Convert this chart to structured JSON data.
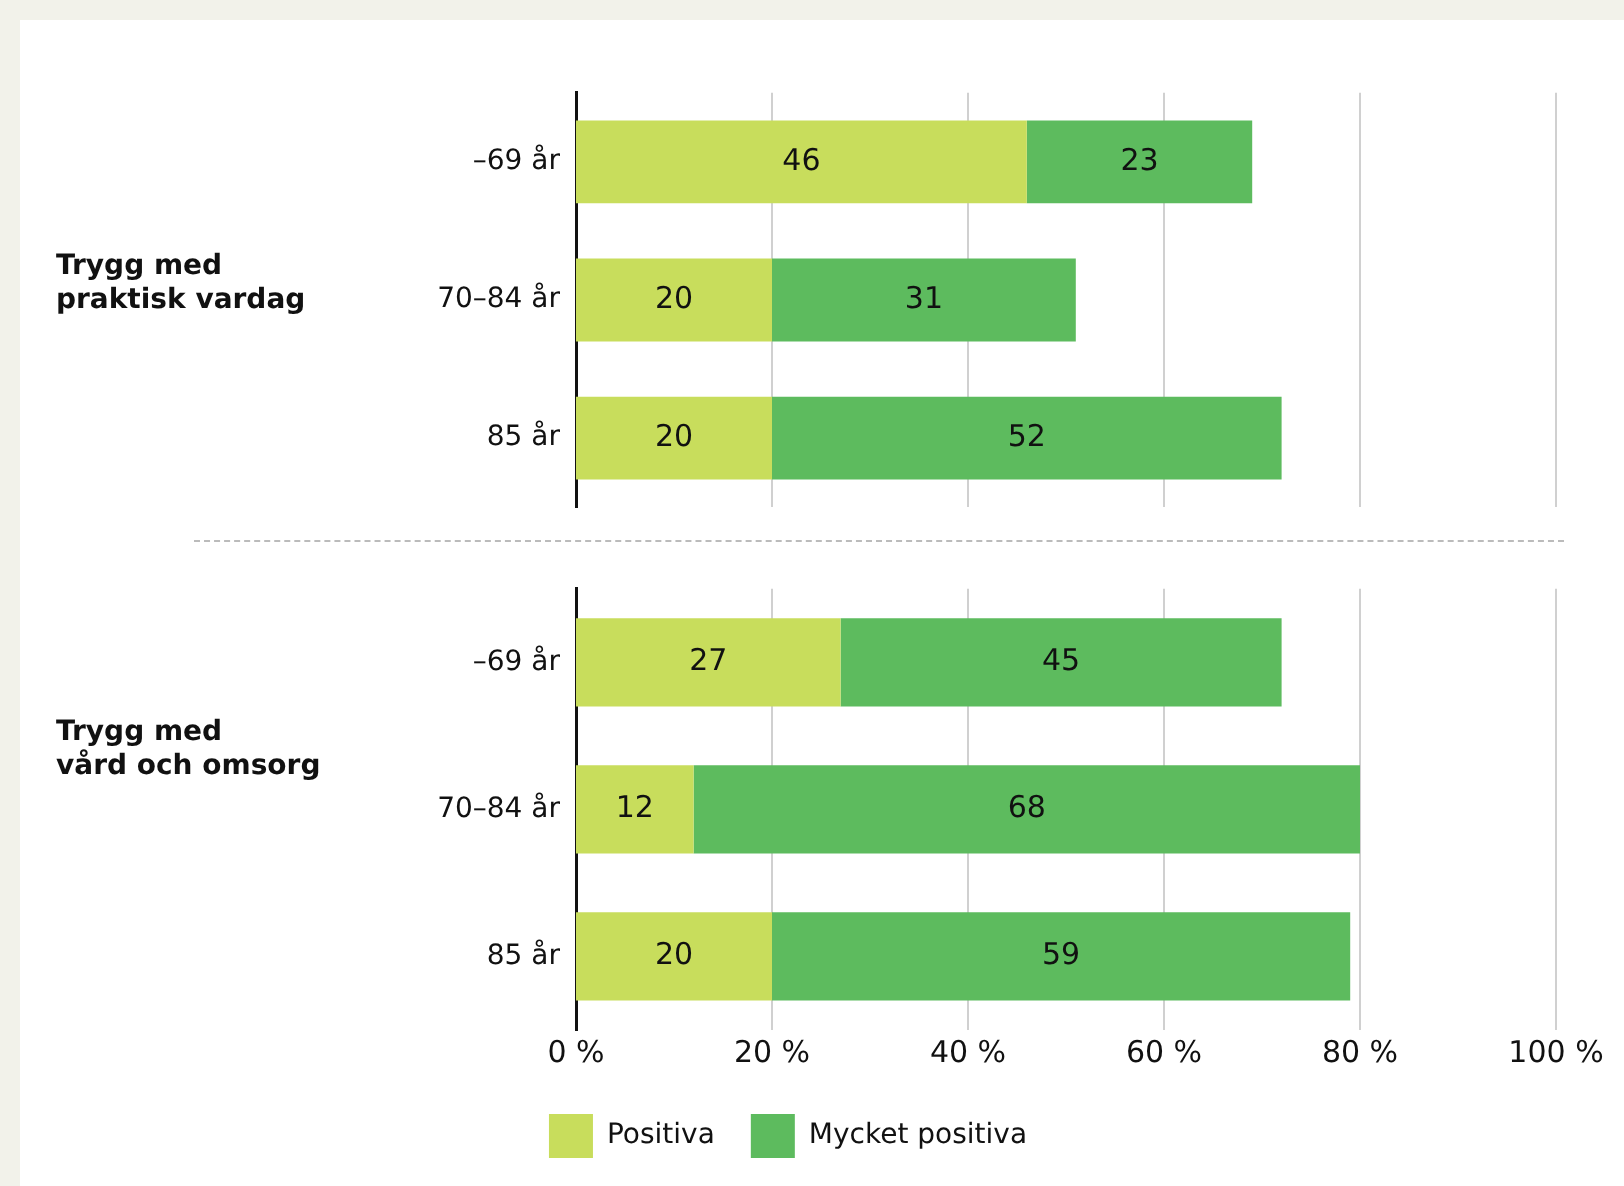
{
  "chart_data": [
    {
      "type": "bar",
      "orientation": "horizontal",
      "stacked": true,
      "ylabel": "Trygg med\npraktisk vardag",
      "categories": [
        "–69 år",
        "70–84 år",
        "85 år"
      ],
      "series": [
        {
          "color": "#c8dd5c",
          "values": [
            46,
            20,
            20
          ]
        },
        {
          "color": "#5dbb5e",
          "values": [
            23,
            31,
            52
          ]
        }
      ],
      "xlim": [
        0,
        100
      ],
      "xticks": [
        {
          "value": 0,
          "label": null
        },
        {
          "value": 20,
          "label": null
        },
        {
          "value": 40,
          "label": null
        },
        {
          "value": 60,
          "label": null
        },
        {
          "value": 80,
          "label": null
        },
        {
          "value": 100,
          "label": null
        }
      ],
      "grid": "x",
      "data_labels": true,
      "tick_labels": "y",
      "legend": false
    },
    {
      "type": "bar",
      "orientation": "horizontal",
      "stacked": true,
      "ylabel": "Trygg med\nvård och omsorg",
      "categories": [
        "–69 år",
        "70–84 år",
        "85 år"
      ],
      "series": [
        {
          "name": "Positiva",
          "color": "#c8dd5c",
          "values": [
            27,
            12,
            20
          ]
        },
        {
          "name": "Mycket positiva",
          "color": "#5dbb5e",
          "values": [
            45,
            68,
            59
          ]
        }
      ],
      "xlim": [
        0,
        100
      ],
      "xticks": [
        {
          "value": 0,
          "label": "0 %"
        },
        {
          "value": 20,
          "label": "20 %"
        },
        {
          "value": 40,
          "label": "40 %"
        },
        {
          "value": 60,
          "label": "60 %"
        },
        {
          "value": 80,
          "label": "80 %"
        },
        {
          "value": 100,
          "label": "100 %"
        }
      ],
      "grid": "x",
      "data_labels": true,
      "legend": "bottom"
    }
  ]
}
